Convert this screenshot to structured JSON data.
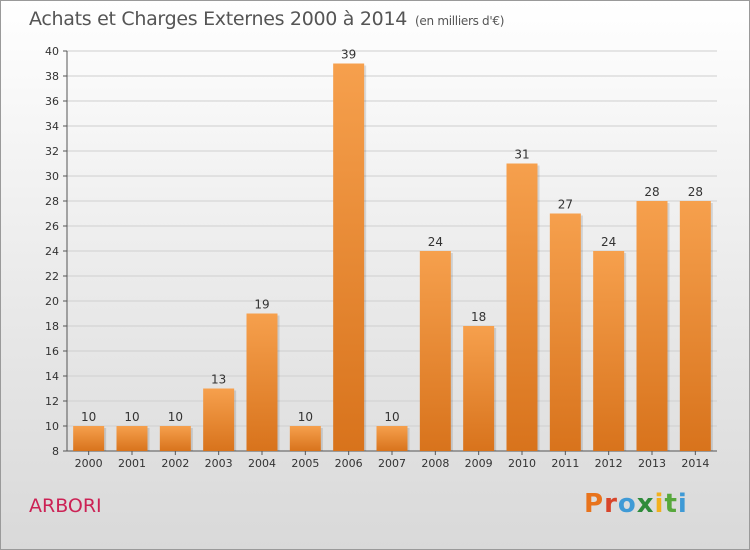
{
  "header": {
    "title": "Achats et Charges Externes 2000 à 2014",
    "unit": "(en milliers d'€)"
  },
  "footer": {
    "commune": "ARBORI",
    "brand": "Proxiti",
    "brand_colors": [
      "#e8731c",
      "#d8452a",
      "#3f9ad6",
      "#2e8b3a",
      "#f2b01e",
      "#57a83c",
      "#3f9ad6"
    ]
  },
  "colors": {
    "bar_light": "#f6a04d",
    "bar_dark": "#d8731c",
    "grid": "#cfcfcf",
    "axis_text": "#333333"
  },
  "chart_data": {
    "type": "bar",
    "title": "Achats et Charges Externes 2000 à 2014",
    "unit": "(en milliers d'€)",
    "categories": [
      "2000",
      "2001",
      "2002",
      "2003",
      "2004",
      "2005",
      "2006",
      "2007",
      "2008",
      "2009",
      "2010",
      "2011",
      "2012",
      "2013",
      "2014"
    ],
    "values": [
      10,
      10,
      10,
      13,
      19,
      10,
      39,
      10,
      24,
      18,
      31,
      27,
      24,
      28,
      28
    ],
    "ylim": [
      8,
      40
    ],
    "yticks": [
      8,
      10,
      12,
      14,
      16,
      18,
      20,
      22,
      24,
      26,
      28,
      30,
      32,
      34,
      36,
      38,
      40
    ],
    "grid": "horizontal",
    "legend": "none"
  }
}
